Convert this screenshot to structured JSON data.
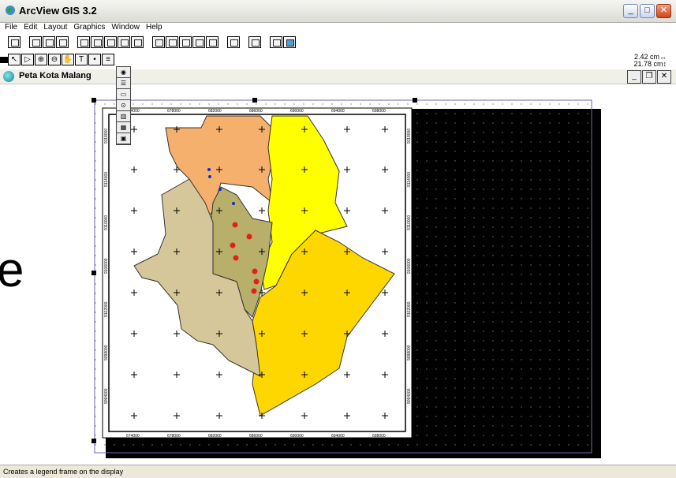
{
  "window": {
    "title": "ArcView GIS 3.2"
  },
  "menu": [
    "File",
    "Edit",
    "Layout",
    "Graphics",
    "Window",
    "Help"
  ],
  "units": {
    "width": "2.42 cm↔",
    "height": "21.78 cm↕"
  },
  "document": {
    "title": "Peta Kota Malang"
  },
  "status": {
    "message": "Creates a legend frame on the display"
  },
  "map": {
    "x_ticks": [
      "674000",
      "678000",
      "682000",
      "686000",
      "690000",
      "694000",
      "698000"
    ],
    "y_ticks": [
      "9118000",
      "9114000",
      "9110000",
      "9106000",
      "9102000",
      "9098000",
      "9094000"
    ],
    "colors": {
      "north": "#f4b06c",
      "west": "#d6c79a",
      "center": "#b8b06a",
      "east_north": "#ffff00",
      "east_south": "#ffd700",
      "red_points": "#e0201c",
      "blue_points": "#1030c0"
    }
  },
  "overlay_letter": "e"
}
